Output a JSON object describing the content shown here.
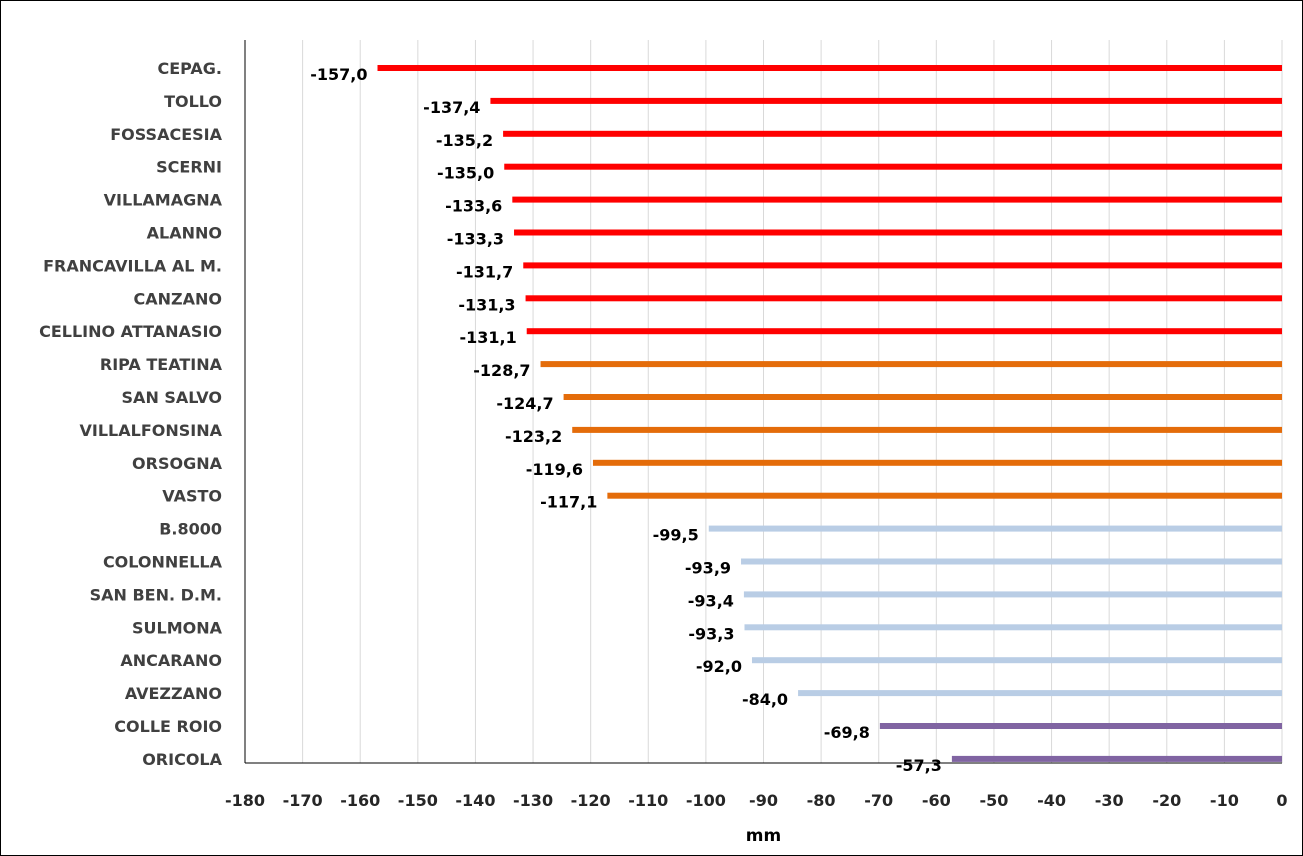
{
  "chart_data": {
    "type": "bar",
    "orientation": "horizontal",
    "title": "",
    "xlabel": "mm",
    "ylabel": "",
    "xlim": [
      -180,
      0
    ],
    "xticks": [
      -180,
      -170,
      -160,
      -150,
      -140,
      -130,
      -120,
      -110,
      -100,
      -90,
      -80,
      -70,
      -60,
      -50,
      -40,
      -30,
      -20,
      -10,
      0
    ],
    "grid": "vertical",
    "legend": "none",
    "categories": [
      "CEPAG.",
      "TOLLO",
      "FOSSACESIA",
      "SCERNI",
      "VILLAMAGNA",
      "ALANNO",
      "FRANCAVILLA AL M.",
      "CANZANO",
      "CELLINO ATTANASIO",
      "RIPA TEATINA",
      "SAN SALVO",
      "VILLALFONSINA",
      "ORSOGNA",
      "VASTO",
      "B.8000",
      "COLONNELLA",
      "SAN BEN. D.M.",
      "SULMONA",
      "ANCARANO",
      "AVEZZANO",
      "COLLE ROIO",
      "ORICOLA"
    ],
    "values": [
      -157.0,
      -137.4,
      -135.2,
      -135.0,
      -133.6,
      -133.3,
      -131.7,
      -131.3,
      -131.1,
      -128.7,
      -124.7,
      -123.2,
      -119.6,
      -117.1,
      -99.5,
      -93.9,
      -93.4,
      -93.3,
      -92.0,
      -84.0,
      -69.8,
      -57.3
    ],
    "value_labels": [
      "-157,0",
      "-137,4",
      "-135,2",
      "-135,0",
      "-133,6",
      "-133,3",
      "-131,7",
      "-131,3",
      "-131,1",
      "-128,7",
      "-124,7",
      "-123,2",
      "-119,6",
      "-117,1",
      "-99,5",
      "-93,9",
      "-93,4",
      "-93,3",
      "-92,0",
      "-84,0",
      "-69,8",
      "-57,3"
    ],
    "bar_colors": [
      "#ff0000",
      "#ff0000",
      "#ff0000",
      "#ff0000",
      "#ff0000",
      "#ff0000",
      "#ff0000",
      "#ff0000",
      "#ff0000",
      "#e46c0a",
      "#e46c0a",
      "#e46c0a",
      "#e46c0a",
      "#e46c0a",
      "#b9cde5",
      "#b9cde5",
      "#b9cde5",
      "#b9cde5",
      "#b9cde5",
      "#b9cde5",
      "#8064a2",
      "#8064a2"
    ],
    "colors": {
      "gridline": "#d9d9d9",
      "axis": "#000000",
      "category_text": "#404040",
      "value_text": "#000000"
    }
  }
}
